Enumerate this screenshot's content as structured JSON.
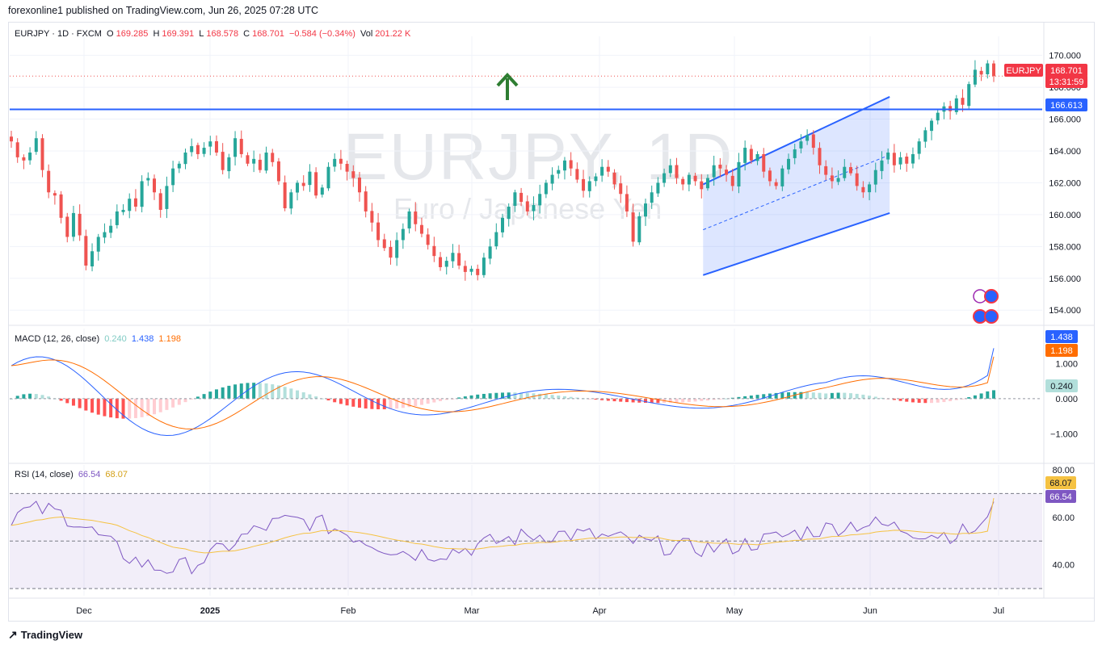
{
  "publish_line": "forexonline1 published on TradingView.com, Jun 26, 2025 07:28 UTC",
  "footer_brand": "TradingView",
  "watermark": {
    "symbol": "EURJPY, 1D",
    "description": "Euro / Japanese Yen"
  },
  "legend": {
    "symbol": "EURJPY · 1D · FXCM",
    "o_label": "O",
    "o": "169.285",
    "h_label": "H",
    "h": "169.391",
    "l_label": "L",
    "l": "168.578",
    "c_label": "C",
    "c": "168.701",
    "change": "−0.584 (−0.34%)",
    "vol_label": "Vol",
    "vol": "201.22 K"
  },
  "macd_legend": {
    "title": "MACD (12, 26, close)",
    "hist": "0.240",
    "macd": "1.438",
    "signal": "1.198"
  },
  "rsi_legend": {
    "title": "RSI (14, close)",
    "rsi": "66.54",
    "ma": "68.07"
  },
  "colors": {
    "up": "#26a69a",
    "down": "#ef5350",
    "level_line": "#2962ff",
    "channel": "#2962ff",
    "macd_line": "#2962ff",
    "signal_line": "#ff6d00",
    "rsi_line": "#7e57c2",
    "rsi_ma": "#f5c242",
    "arrow": "#2e7d32"
  },
  "labels": {
    "symbol_tag": "EURJPY",
    "last_price": "168.701",
    "countdown": "13:31:59",
    "level": "166.613",
    "macd_tag": "1.438",
    "signal_tag": "1.198",
    "hist_tag": "0.240",
    "rsi_ma_tag": "68.07",
    "rsi_tag": "66.54"
  },
  "chart_data": [
    {
      "type": "candlestick",
      "title": "EURJPY · 1D · FXCM",
      "x_ticks": [
        "Dec",
        "2025",
        "Feb",
        "Mar",
        "Apr",
        "May",
        "Jun",
        "Jul"
      ],
      "y_ticks": [
        "170.000",
        "168.000",
        "166.000",
        "164.000",
        "162.000",
        "160.000",
        "158.000",
        "156.000",
        "154.000"
      ],
      "ylim": [
        153.2,
        171.2
      ],
      "horizontal_level": 166.613,
      "last_price": 168.701,
      "annotation": "green up arrow above the price action in early March",
      "channel": {
        "lower": [
          [
            0,
            156.2
          ],
          [
            1,
            160.1
          ]
        ],
        "upper": [
          [
            0,
            161.9
          ],
          [
            1,
            167.4
          ]
        ],
        "start": "Apr 1",
        "end": "May 13"
      },
      "closes_by_month": [
        {
          "period": "Nov (mid-late)",
          "closes": [
            164.6,
            163.6,
            163.4,
            163.9,
            164.8,
            162.8,
            161.4,
            161.2,
            159.8,
            158.6,
            160.1,
            158.7,
            156.8,
            157.7,
            158.6,
            158.9,
            159.3,
            160.2
          ]
        },
        {
          "period": "Dec",
          "closes": [
            160.3,
            161.0,
            160.5,
            162.1,
            162.3,
            161.4,
            160.3,
            161.8,
            162.9,
            163.2,
            163.9,
            164.3,
            163.8,
            164.2,
            164.6,
            163.9,
            162.8,
            163.6,
            164.8,
            163.8
          ]
        },
        {
          "period": "Jan",
          "closes": [
            163.2,
            163.5,
            162.8,
            163.9,
            163.3,
            162.1,
            160.4,
            161.4,
            162.0,
            161.8,
            162.7,
            161.2,
            161.7,
            163.0,
            163.5,
            163.2,
            162.7,
            162.3,
            161.4,
            160.2
          ]
        },
        {
          "period": "Feb",
          "closes": [
            159.5,
            158.4,
            157.9,
            157.3,
            158.4,
            159.1,
            160.2,
            159.4,
            158.8,
            158.1,
            157.4,
            156.7,
            157.1,
            157.6,
            156.8,
            156.4,
            156.6,
            156.2,
            157.3,
            158.0
          ]
        },
        {
          "period": "Mar",
          "closes": [
            158.9,
            159.8,
            160.5,
            161.4,
            160.8,
            160.2,
            160.6,
            161.3,
            162.0,
            162.5,
            162.8,
            163.4,
            162.9,
            162.2,
            161.5,
            162.1,
            162.4,
            163.0,
            162.7,
            161.9
          ]
        },
        {
          "period": "Apr",
          "closes": [
            161.3,
            160.2,
            158.3,
            159.9,
            160.7,
            161.4,
            162.0,
            162.6,
            163.1,
            162.3,
            161.9,
            162.5,
            162.1,
            161.6,
            162.3,
            163.1,
            162.9,
            162.5,
            161.8,
            163.3,
            164.2
          ]
        },
        {
          "period": "May",
          "closes": [
            163.4,
            163.8,
            162.7,
            162.1,
            161.8,
            162.9,
            163.5,
            164.1,
            164.6,
            165.0,
            164.2,
            163.1,
            162.5,
            162.1,
            162.3,
            163.0,
            162.6,
            161.8,
            161.4,
            161.9,
            162.8,
            163.4,
            163.9
          ]
        },
        {
          "period": "Jun",
          "closes": [
            163.1,
            163.6,
            163.2,
            163.8,
            164.6,
            165.3,
            165.9,
            166.4,
            166.8,
            166.5,
            167.3,
            166.9,
            168.2,
            169.1,
            168.8,
            169.5,
            168.7
          ]
        }
      ]
    },
    {
      "type": "line",
      "title": "MACD (12, 26, close)",
      "series": [
        {
          "name": "MACD",
          "last": 1.438
        },
        {
          "name": "Signal",
          "last": 1.198
        },
        {
          "name": "Histogram",
          "last": 0.24
        }
      ],
      "y_ticks": [
        "1.000",
        "0.000",
        "−1.000"
      ],
      "ylim": [
        -1.8,
        2.0
      ]
    },
    {
      "type": "line",
      "title": "RSI (14, close)",
      "series": [
        {
          "name": "RSI",
          "last": 66.54
        },
        {
          "name": "RSI MA",
          "last": 68.07
        }
      ],
      "bands": [
        30,
        50,
        70
      ],
      "y_ticks": [
        "80.00",
        "60.00",
        "40.00"
      ],
      "ylim": [
        27,
        82
      ]
    }
  ]
}
